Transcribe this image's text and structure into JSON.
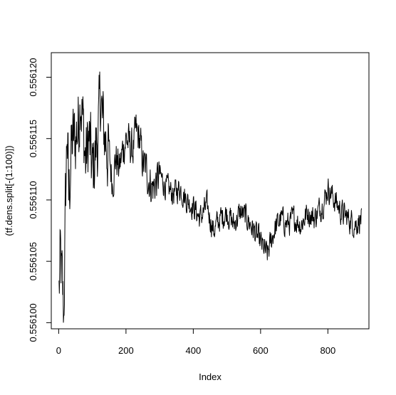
{
  "chart_data": {
    "type": "line",
    "title": "",
    "xlabel": "Index",
    "ylabel": "(tf.dens.split[-(1:100)])",
    "xlim": [
      -22,
      922
    ],
    "ylim": [
      0.5560995,
      0.556122
    ],
    "xticks": [
      0,
      200,
      400,
      600,
      800
    ],
    "xtick_labels": [
      "0",
      "200",
      "400",
      "600",
      "800"
    ],
    "yticks": [
      0.5561,
      0.556105,
      0.55611,
      0.556115,
      0.55612
    ],
    "ytick_labels": [
      "0.556100",
      "0.556105",
      "0.556110",
      "0.556115",
      "0.556120"
    ],
    "grid": false,
    "legend": "none",
    "line_color": "#000000",
    "series": [
      {
        "n_points": 900,
        "x": [
          1,
          5,
          10,
          15,
          20,
          25,
          30,
          35,
          40,
          50,
          60,
          65,
          70,
          80,
          90,
          100,
          110,
          120,
          125,
          130,
          140,
          150,
          160,
          170,
          180,
          190,
          200,
          210,
          220,
          230,
          240,
          250,
          260,
          270,
          280,
          290,
          300,
          320,
          340,
          360,
          380,
          400,
          420,
          440,
          460,
          480,
          500,
          520,
          540,
          560,
          580,
          600,
          610,
          620,
          640,
          660,
          680,
          700,
          720,
          740,
          760,
          780,
          790,
          800,
          810,
          820,
          840,
          860,
          880,
          900
        ],
        "y": [
          0.5561025,
          0.556105,
          0.556103,
          0.5561005,
          0.556109,
          0.556116,
          0.55611,
          0.556113,
          0.5561145,
          0.556115,
          0.5561165,
          0.5561195,
          0.556117,
          0.556113,
          0.556115,
          0.556112,
          0.556114,
          0.556116,
          0.556119,
          0.556116,
          0.556115,
          0.5561135,
          0.5561115,
          0.5561135,
          0.5561125,
          0.556114,
          0.556115,
          0.5561145,
          0.556114,
          0.5561155,
          0.556115,
          0.556113,
          0.5561125,
          0.5561115,
          0.556111,
          0.5561115,
          0.556112,
          0.556111,
          0.5561105,
          0.556111,
          0.55611,
          0.5561095,
          0.5561085,
          0.5561095,
          0.5561075,
          0.5561085,
          0.556109,
          0.556108,
          0.556109,
          0.5561085,
          0.5561075,
          0.5561065,
          0.556106,
          0.5561055,
          0.5561075,
          0.5561085,
          0.556108,
          0.5561085,
          0.556108,
          0.556109,
          0.5561085,
          0.5561095,
          0.55611,
          0.556111,
          0.5561105,
          0.55611,
          0.556109,
          0.5561085,
          0.556108,
          0.5561085
        ]
      }
    ]
  }
}
